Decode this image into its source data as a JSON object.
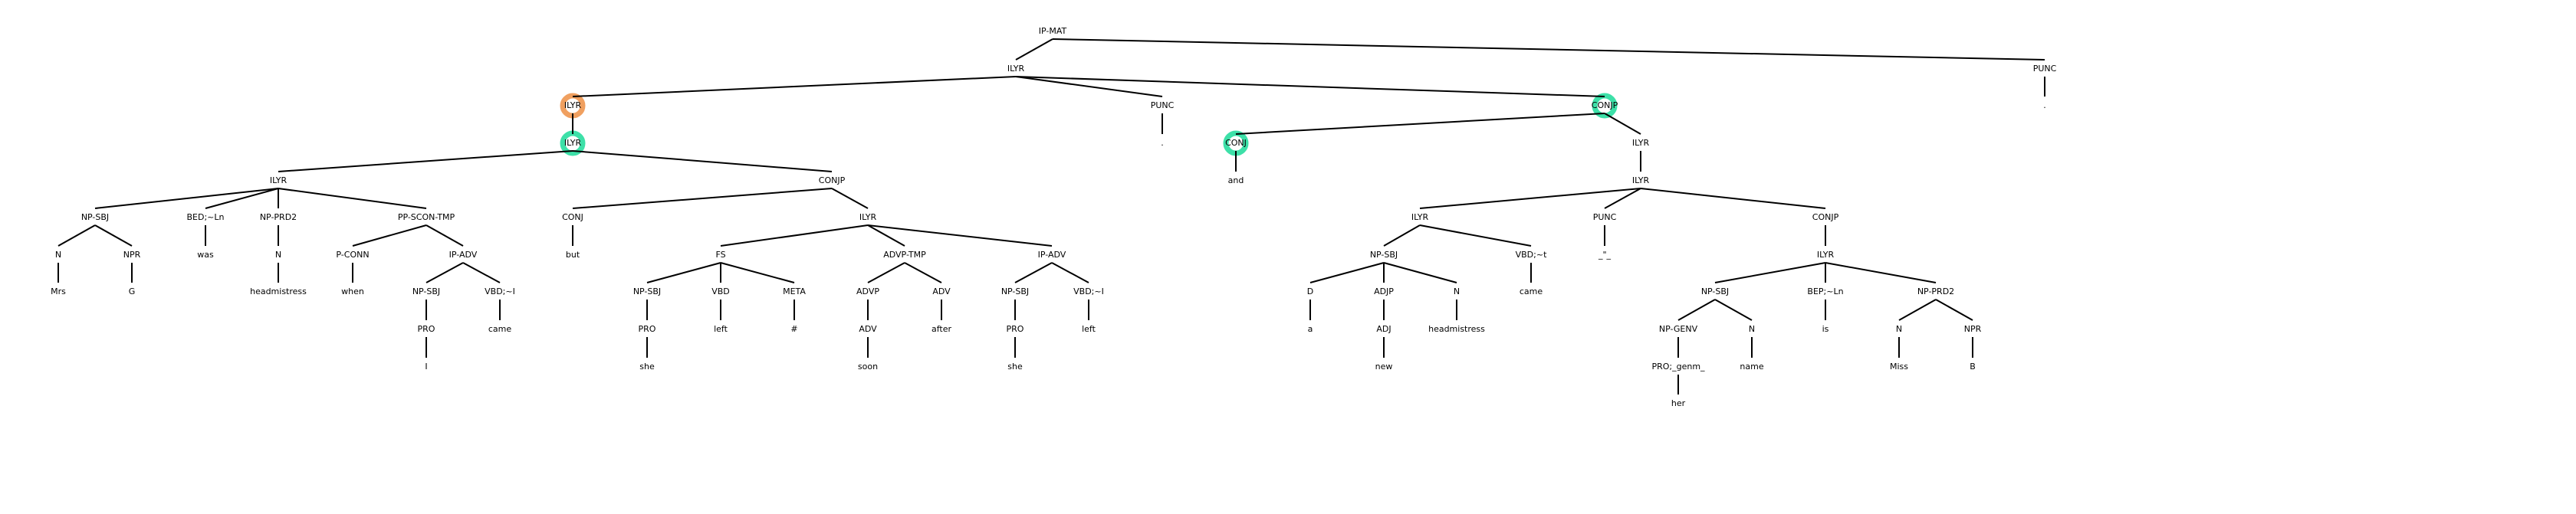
{
  "colors": {
    "background": "#ffffff",
    "edge": "#000000",
    "text": "#000000",
    "highlight_orange": "#f0a060",
    "highlight_green": "#3de0a8"
  },
  "tree": {
    "nodes": [
      {
        "id": "n0",
        "label": "IP-MAT"
      },
      {
        "id": "n1",
        "label": "ILYR",
        "parent": "n0"
      },
      {
        "id": "n2",
        "label": "PUNC",
        "parent": "n0"
      },
      {
        "id": "n3",
        "label": "ILYR",
        "parent": "n1",
        "highlight": "orange"
      },
      {
        "id": "n4",
        "label": "PUNC",
        "parent": "n1"
      },
      {
        "id": "n5",
        "label": "CONJP",
        "parent": "n1",
        "highlight": "green"
      },
      {
        "id": "n6",
        "label": "ILYR",
        "parent": "n3",
        "highlight": "green"
      },
      {
        "id": "n7",
        "label": ".",
        "parent": "n4"
      },
      {
        "id": "n8",
        "label": "CONJ",
        "parent": "n5",
        "highlight": "green"
      },
      {
        "id": "n9",
        "label": "ILYR",
        "parent": "n5"
      },
      {
        "id": "n10",
        "label": ".",
        "parent": "n2"
      },
      {
        "id": "n11",
        "label": "ILYR",
        "parent": "n6"
      },
      {
        "id": "n12",
        "label": "CONJP",
        "parent": "n6"
      },
      {
        "id": "n13",
        "label": "and",
        "parent": "n8"
      },
      {
        "id": "n14",
        "label": "ILYR",
        "parent": "n9"
      },
      {
        "id": "n15",
        "label": "NP-SBJ",
        "parent": "n11"
      },
      {
        "id": "n16",
        "label": "BED;~Ln",
        "parent": "n11"
      },
      {
        "id": "n17",
        "label": "NP-PRD2",
        "parent": "n11"
      },
      {
        "id": "n18",
        "label": "PP-SCON-TMP",
        "parent": "n11"
      },
      {
        "id": "n19",
        "label": "CONJ",
        "parent": "n12"
      },
      {
        "id": "n20",
        "label": "ILYR",
        "parent": "n12"
      },
      {
        "id": "n21",
        "label": "ILYR",
        "parent": "n14"
      },
      {
        "id": "n22",
        "label": "PUNC",
        "parent": "n14"
      },
      {
        "id": "n23",
        "label": "CONJP",
        "parent": "n14"
      },
      {
        "id": "n24",
        "label": "N",
        "parent": "n15"
      },
      {
        "id": "n25",
        "label": "NPR",
        "parent": "n15"
      },
      {
        "id": "n26",
        "label": "was",
        "parent": "n16"
      },
      {
        "id": "n27",
        "label": "N",
        "parent": "n17"
      },
      {
        "id": "n28",
        "label": "P-CONN",
        "parent": "n18"
      },
      {
        "id": "n29",
        "label": "IP-ADV",
        "parent": "n18"
      },
      {
        "id": "n30",
        "label": "but",
        "parent": "n19"
      },
      {
        "id": "n31",
        "label": "FS",
        "parent": "n20"
      },
      {
        "id": "n32",
        "label": "ADVP-TMP",
        "parent": "n20"
      },
      {
        "id": "n33",
        "label": "IP-ADV",
        "parent": "n20"
      },
      {
        "id": "n34",
        "label": "NP-SBJ",
        "parent": "n21"
      },
      {
        "id": "n35",
        "label": "VBD;~t",
        "parent": "n21"
      },
      {
        "id": "n36",
        "label": "_\"_",
        "parent": "n22"
      },
      {
        "id": "n37",
        "label": "ILYR",
        "parent": "n23"
      },
      {
        "id": "n38",
        "label": "Mrs",
        "parent": "n24"
      },
      {
        "id": "n39",
        "label": "G",
        "parent": "n25"
      },
      {
        "id": "n40",
        "label": "headmistress",
        "parent": "n27"
      },
      {
        "id": "n41",
        "label": "when",
        "parent": "n28"
      },
      {
        "id": "n42",
        "label": "NP-SBJ",
        "parent": "n29"
      },
      {
        "id": "n43",
        "label": "VBD;~I",
        "parent": "n29"
      },
      {
        "id": "n44",
        "label": "NP-SBJ",
        "parent": "n31"
      },
      {
        "id": "n45",
        "label": "VBD",
        "parent": "n31"
      },
      {
        "id": "n46",
        "label": "META",
        "parent": "n31"
      },
      {
        "id": "n47",
        "label": "ADVP",
        "parent": "n32"
      },
      {
        "id": "n48",
        "label": "ADV",
        "parent": "n32"
      },
      {
        "id": "n49",
        "label": "NP-SBJ",
        "parent": "n33"
      },
      {
        "id": "n50",
        "label": "VBD;~I",
        "parent": "n33"
      },
      {
        "id": "n51",
        "label": "D",
        "parent": "n34"
      },
      {
        "id": "n52",
        "label": "ADJP",
        "parent": "n34"
      },
      {
        "id": "n53",
        "label": "N",
        "parent": "n34"
      },
      {
        "id": "n54",
        "label": "came",
        "parent": "n35"
      },
      {
        "id": "n55",
        "label": "NP-SBJ",
        "parent": "n37"
      },
      {
        "id": "n56",
        "label": "BEP;~Ln",
        "parent": "n37"
      },
      {
        "id": "n57",
        "label": "NP-PRD2",
        "parent": "n37"
      },
      {
        "id": "n58",
        "label": "PRO",
        "parent": "n42"
      },
      {
        "id": "n59",
        "label": "came",
        "parent": "n43"
      },
      {
        "id": "n60",
        "label": "PRO",
        "parent": "n44"
      },
      {
        "id": "n61",
        "label": "left",
        "parent": "n45"
      },
      {
        "id": "n62",
        "label": "#",
        "parent": "n46"
      },
      {
        "id": "n63",
        "label": "ADV",
        "parent": "n47"
      },
      {
        "id": "n64",
        "label": "after",
        "parent": "n48"
      },
      {
        "id": "n65",
        "label": "PRO",
        "parent": "n49"
      },
      {
        "id": "n66",
        "label": "left",
        "parent": "n50"
      },
      {
        "id": "n67",
        "label": "a",
        "parent": "n51"
      },
      {
        "id": "n68",
        "label": "ADJ",
        "parent": "n52"
      },
      {
        "id": "n69",
        "label": "headmistress",
        "parent": "n53"
      },
      {
        "id": "n70",
        "label": "NP-GENV",
        "parent": "n55"
      },
      {
        "id": "n71",
        "label": "N",
        "parent": "n55"
      },
      {
        "id": "n72",
        "label": "is",
        "parent": "n56"
      },
      {
        "id": "n73",
        "label": "N",
        "parent": "n57"
      },
      {
        "id": "n74",
        "label": "NPR",
        "parent": "n57"
      },
      {
        "id": "n75",
        "label": "I",
        "parent": "n58"
      },
      {
        "id": "n76",
        "label": "she",
        "parent": "n60"
      },
      {
        "id": "n77",
        "label": "soon",
        "parent": "n63"
      },
      {
        "id": "n78",
        "label": "she",
        "parent": "n65"
      },
      {
        "id": "n79",
        "label": "new",
        "parent": "n68"
      },
      {
        "id": "n80",
        "label": "PRO;_genm_",
        "parent": "n70"
      },
      {
        "id": "n81",
        "label": "name",
        "parent": "n71"
      },
      {
        "id": "n82",
        "label": "Miss",
        "parent": "n73"
      },
      {
        "id": "n83",
        "label": "B",
        "parent": "n74"
      },
      {
        "id": "n84",
        "label": "her",
        "parent": "n80"
      }
    ]
  }
}
